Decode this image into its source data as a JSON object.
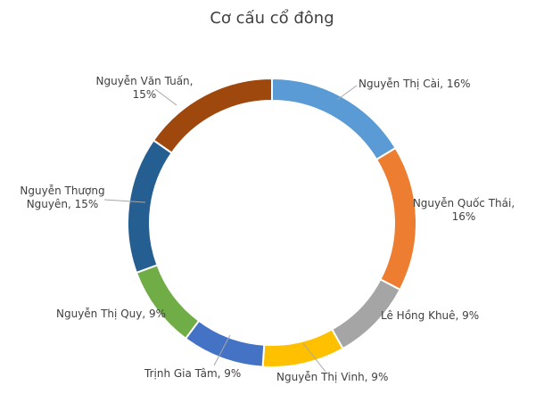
{
  "chart_data": {
    "type": "pie",
    "variant": "doughnut",
    "title": "Cơ cấu cổ đông",
    "legend": "none",
    "colors": [
      "#5b9bd5",
      "#ed7d31",
      "#a5a5a5",
      "#ffc000",
      "#4472c4",
      "#70ad47",
      "#255e91",
      "#9e480e"
    ],
    "slices": [
      {
        "name": "Nguyễn Thị Cài",
        "value": 16,
        "label_lines": [
          "Nguyễn Thị Cài, 16%"
        ]
      },
      {
        "name": "Nguyễn Quốc Thái",
        "value": 16,
        "label_lines": [
          "Nguyễn Quốc Thái,",
          "16%"
        ]
      },
      {
        "name": "Lê Hồng Khuê",
        "value": 9,
        "label_lines": [
          "Lê Hồng Khuê, 9%"
        ]
      },
      {
        "name": "Nguyễn Thị Vinh",
        "value": 9,
        "label_lines": [
          "Nguyễn Thị Vinh, 9%"
        ]
      },
      {
        "name": "Trịnh Gia  Tâm",
        "value": 9,
        "label_lines": [
          "Trịnh Gia  Tâm, 9%"
        ]
      },
      {
        "name": "Nguyễn Thị Quy",
        "value": 9,
        "label_lines": [
          "Nguyễn Thị Quy, 9%"
        ]
      },
      {
        "name": "Nguyễn Thượng Nguyên",
        "value": 15,
        "label_lines": [
          "Nguyễn Thượng",
          "Nguyên, 15%"
        ]
      },
      {
        "name": "Nguyễn Văn Tuấn",
        "value": 15,
        "label_lines": [
          "Nguyễn Văn Tuấn,",
          "15%"
        ]
      }
    ]
  }
}
